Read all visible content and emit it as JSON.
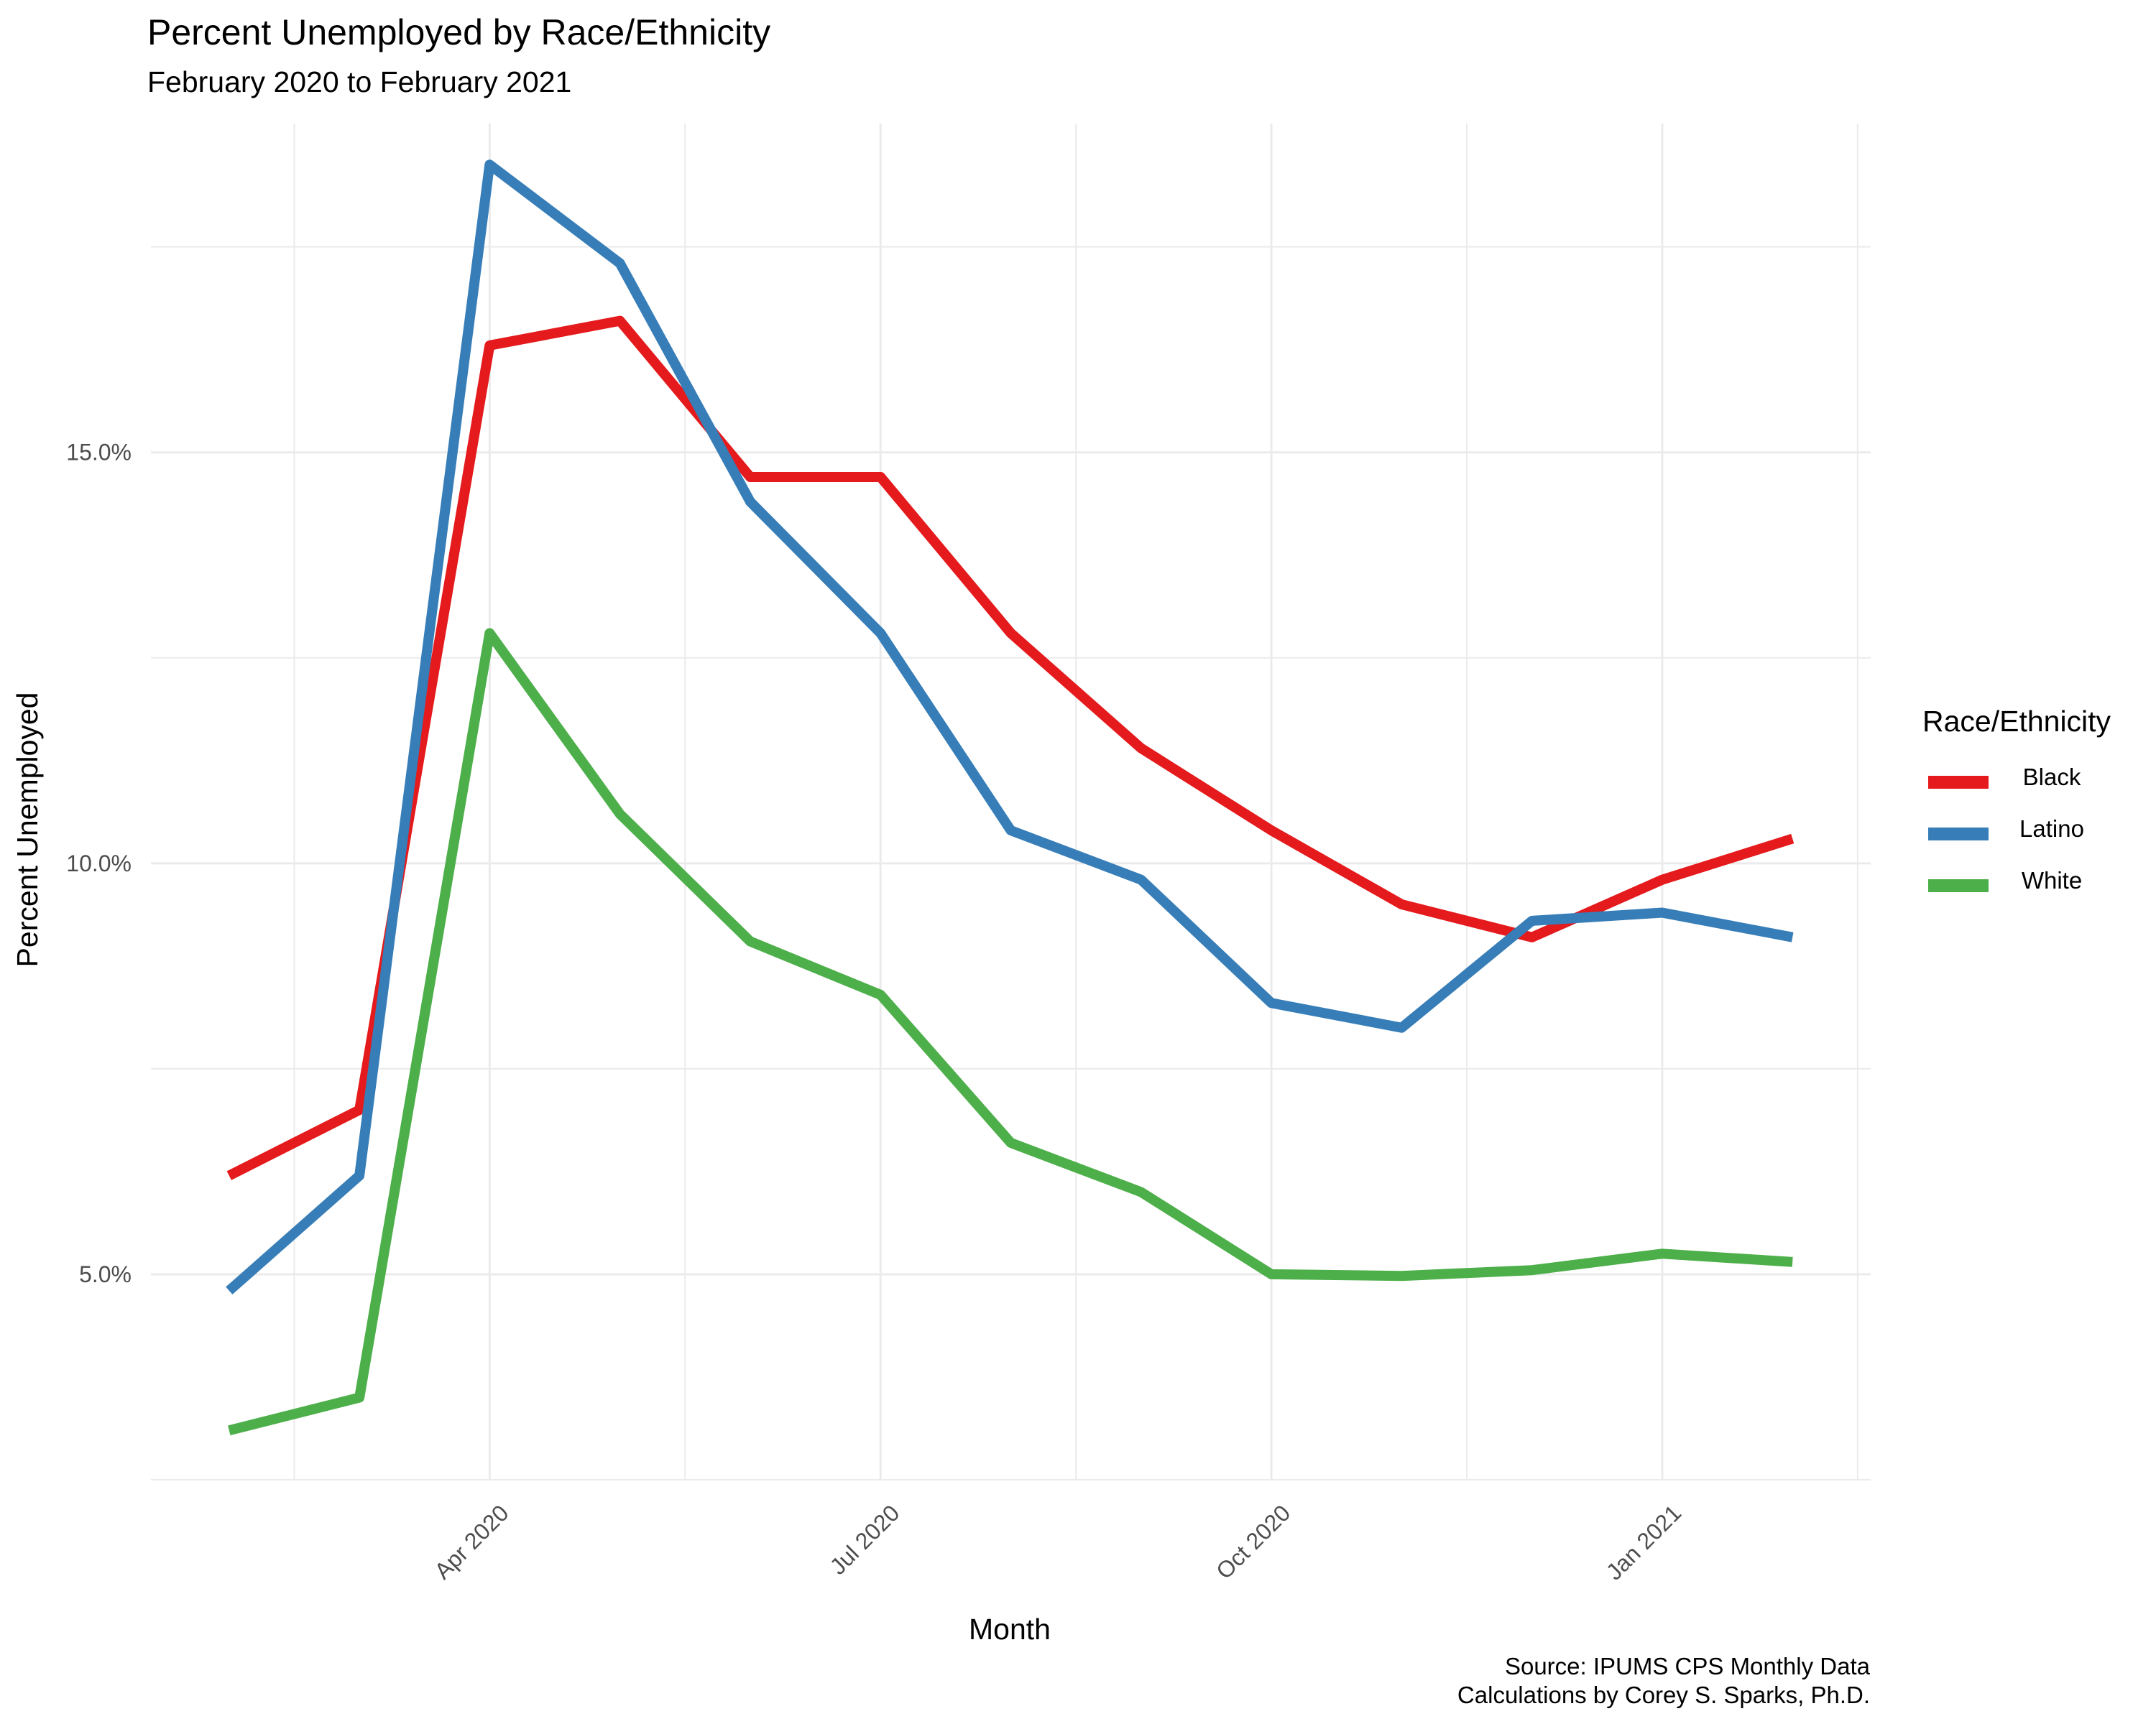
{
  "title": "Percent Unemployed by Race/Ethnicity",
  "subtitle": "February 2020 to February 2021",
  "caption_line1": "Source: IPUMS CPS Monthly Data",
  "caption_line2": "Calculations by Corey S. Sparks, Ph.D.",
  "legend_title": "Race/Ethnicity",
  "chart_data": {
    "type": "line",
    "title": "Percent Unemployed by Race/Ethnicity",
    "subtitle": "February 2020 to February 2021",
    "xlabel": "Month",
    "ylabel": "Percent Unemployed",
    "x": [
      "2020-02",
      "2020-03",
      "2020-04",
      "2020-05",
      "2020-06",
      "2020-07",
      "2020-08",
      "2020-09",
      "2020-10",
      "2020-11",
      "2020-12",
      "2021-01",
      "2021-02"
    ],
    "x_ticks": [
      "Apr 2020",
      "Jul 2020",
      "Oct 2020",
      "Jan 2021"
    ],
    "y_ticks": [
      "5.0%",
      "10.0%",
      "15.0%"
    ],
    "ylim": [
      2.5,
      19.0
    ],
    "grid": true,
    "legend_position": "right",
    "series": [
      {
        "name": "Black",
        "color": "#E41A1C",
        "values": [
          6.2,
          7.0,
          16.3,
          16.6,
          14.7,
          14.7,
          12.8,
          11.4,
          10.4,
          9.5,
          9.1,
          9.8,
          10.3
        ]
      },
      {
        "name": "Latino",
        "color": "#377EB8",
        "values": [
          4.8,
          6.2,
          18.5,
          17.3,
          14.4,
          12.8,
          10.4,
          9.8,
          8.3,
          8.0,
          9.3,
          9.4,
          9.1
        ]
      },
      {
        "name": "White",
        "color": "#4DAF4A",
        "values": [
          3.1,
          3.5,
          12.8,
          10.6,
          9.05,
          8.4,
          6.6,
          6.0,
          5.0,
          4.98,
          5.05,
          5.25,
          5.15
        ]
      }
    ]
  }
}
